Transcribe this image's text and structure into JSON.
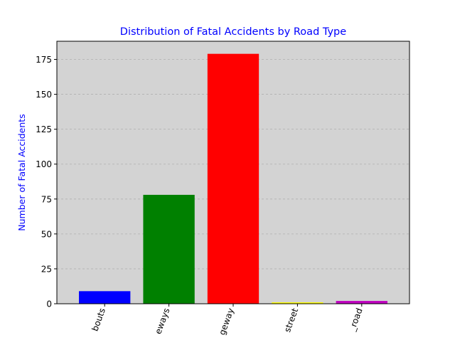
{
  "chart_data": {
    "type": "bar",
    "title": "Distribution of Fatal Accidents by Road Type",
    "xlabel": "",
    "ylabel": "Number of Fatal Accidents",
    "categories": [
      "roundabouts",
      "dual_carriageways",
      "single_carriageway",
      "one_way_street",
      "slip_road"
    ],
    "category_labels_visible": [
      "bouts",
      "eways",
      "geway",
      "street",
      "_road"
    ],
    "values": [
      9,
      78,
      179,
      1,
      2
    ],
    "colors": [
      "#0000ff",
      "#008000",
      "#ff0000",
      "#ffff00",
      "#bf00bf"
    ],
    "ylim": [
      0,
      188
    ],
    "yticks": [
      0,
      25,
      50,
      75,
      100,
      125,
      150,
      175
    ],
    "grid": "y-dashed",
    "title_color": "#0000ff",
    "ylabel_color": "#0000ff",
    "plot_background": "#d3d3d3"
  }
}
